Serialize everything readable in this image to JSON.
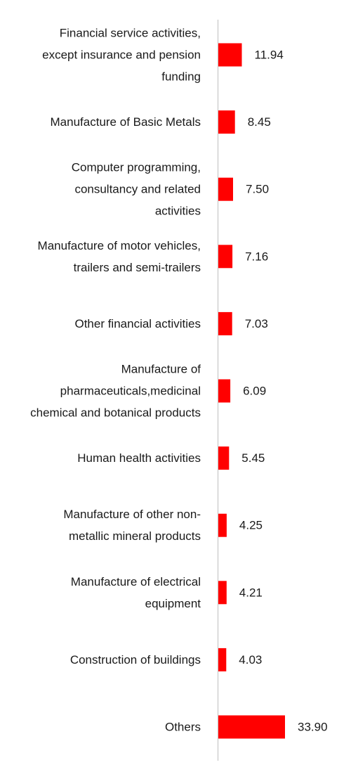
{
  "chart_data": {
    "type": "bar",
    "orientation": "horizontal",
    "bar_color": "#ff0000",
    "axis_color": "#d0d0d0",
    "xlim": [
      0,
      34
    ],
    "grid": false,
    "legend": "none",
    "categories": [
      [
        "Financial service activities,",
        "except insurance and pension",
        "funding"
      ],
      [
        "Manufacture of Basic Metals"
      ],
      [
        "Computer programming,",
        "consultancy and related",
        "activities"
      ],
      [
        "Manufacture of motor vehicles,",
        "trailers and semi-trailers"
      ],
      [
        "Other financial activities"
      ],
      [
        "Manufacture of",
        "pharmaceuticals,medicinal",
        "chemical and botanical products"
      ],
      [
        "Human health activities"
      ],
      [
        "Manufacture of other non-",
        "metallic mineral products"
      ],
      [
        "Manufacture of electrical",
        "equipment"
      ],
      [
        "Construction of buildings"
      ],
      [
        "Others"
      ]
    ],
    "values": [
      11.94,
      8.45,
      7.5,
      7.16,
      7.03,
      6.09,
      5.45,
      4.25,
      4.21,
      4.03,
      33.9
    ],
    "value_labels": [
      "11.94",
      "8.45",
      "7.50",
      "7.16",
      "7.03",
      "6.09",
      "5.45",
      "4.25",
      "4.21",
      "4.03",
      "33.90"
    ]
  }
}
